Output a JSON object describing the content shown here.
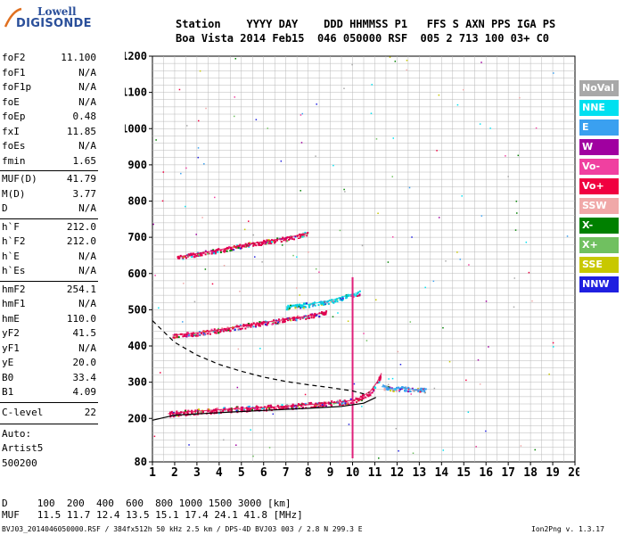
{
  "logo": {
    "line1": "Lowell",
    "line2": "DIGISONDE"
  },
  "header": {
    "line1": "Station    YYYY DAY    DDD HHMMSS P1   FFS S AXN PPS IGA PS",
    "line2": "Boa Vista 2014 Feb15  046 050000 RSF  005 2 713 100 03+ C0"
  },
  "params": [
    {
      "label": "foF2",
      "value": "11.100"
    },
    {
      "label": "foF1",
      "value": "N/A"
    },
    {
      "label": "foF1p",
      "value": "N/A"
    },
    {
      "label": "foE",
      "value": "N/A"
    },
    {
      "label": "foEp",
      "value": "0.48"
    },
    {
      "label": "fxI",
      "value": "11.85"
    },
    {
      "label": "foEs",
      "value": "N/A"
    },
    {
      "label": "fmin",
      "value": "1.65"
    },
    {
      "label": "MUF(D)",
      "value": "41.79"
    },
    {
      "label": "M(D)",
      "value": "3.77"
    },
    {
      "label": "D",
      "value": "N/A"
    },
    {
      "label": "h`F",
      "value": "212.0"
    },
    {
      "label": "h`F2",
      "value": "212.0"
    },
    {
      "label": "h`E",
      "value": "N/A"
    },
    {
      "label": "h`Es",
      "value": "N/A"
    },
    {
      "label": "hmF2",
      "value": "254.1"
    },
    {
      "label": "hmF1",
      "value": "N/A"
    },
    {
      "label": "hmE",
      "value": "110.0"
    },
    {
      "label": "yF2",
      "value": "41.5"
    },
    {
      "label": "yF1",
      "value": "N/A"
    },
    {
      "label": "yE",
      "value": "20.0"
    },
    {
      "label": "B0",
      "value": "33.4"
    },
    {
      "label": "B1",
      "value": "4.09"
    }
  ],
  "clevel": {
    "label": "C-level",
    "value": "22"
  },
  "auto": {
    "line1": "Auto:",
    "line2": "Artist5",
    "line3": "500200"
  },
  "legend": [
    {
      "label": "NoVal",
      "color": "#a8a8a8"
    },
    {
      "label": "NNE",
      "color": "#00e0f0"
    },
    {
      "label": "E",
      "color": "#3aa0f0"
    },
    {
      "label": "W",
      "color": "#a000a0"
    },
    {
      "label": "Vo-",
      "color": "#f040a0"
    },
    {
      "label": "Vo+",
      "color": "#f00040"
    },
    {
      "label": "SSW",
      "color": "#f0a8a8"
    },
    {
      "label": "X-",
      "color": "#008000"
    },
    {
      "label": "X+",
      "color": "#70c060"
    },
    {
      "label": "SSE",
      "color": "#c8c800"
    },
    {
      "label": "NNW",
      "color": "#2020e0"
    }
  ],
  "bottom": {
    "d_line": "D     100  200  400  600  800 1000 1500 3000 [km]",
    "muf_line": "MUF   11.5 11.7 12.4 13.5 15.1 17.4 24.1 41.8 [MHz]",
    "footer_left": "BVJ03_2014046050000.RSF / 384fx512h 50 kHz 2.5 km / DPS-4D BVJ03 003 / 2.8 N 299.3 E",
    "footer_right": "Ion2Png v. 1.3.17"
  },
  "chart_data": {
    "type": "scatter",
    "xlim": [
      1,
      20
    ],
    "ylim": [
      80,
      1200
    ],
    "x_ticks": [
      1,
      2,
      3,
      4,
      5,
      6,
      7,
      8,
      9,
      10,
      11,
      12,
      13,
      14,
      15,
      16,
      17,
      18,
      19,
      20
    ],
    "y_ticks": [
      80,
      200,
      300,
      400,
      500,
      600,
      700,
      800,
      900,
      1000,
      1100,
      1200
    ],
    "y_scale": "linear",
    "grid": true,
    "series": [
      {
        "name": "F2 trace (O)",
        "color": "#e00050",
        "points": [
          [
            1.7,
            213
          ],
          [
            2.5,
            218
          ],
          [
            3.5,
            222
          ],
          [
            4.5,
            226
          ],
          [
            5.5,
            229
          ],
          [
            6.5,
            232
          ],
          [
            7.5,
            236
          ],
          [
            8.5,
            240
          ],
          [
            9.5,
            246
          ],
          [
            10.2,
            252
          ],
          [
            10.8,
            275
          ],
          [
            11.1,
            300
          ],
          [
            11.3,
            325
          ]
        ]
      },
      {
        "name": "2F2 echo",
        "color": "#e00050",
        "points": [
          [
            1.9,
            430
          ],
          [
            3,
            436
          ],
          [
            4,
            445
          ],
          [
            5,
            455
          ],
          [
            6,
            465
          ],
          [
            7,
            473
          ],
          [
            8,
            483
          ],
          [
            8.8,
            493
          ]
        ]
      },
      {
        "name": "3F2 echo",
        "color": "#e00050",
        "points": [
          [
            2.1,
            645
          ],
          [
            3,
            655
          ],
          [
            4,
            665
          ],
          [
            5,
            678
          ],
          [
            6,
            688
          ],
          [
            7,
            698
          ],
          [
            8,
            712
          ]
        ]
      },
      {
        "name": "Upper 2nd hop",
        "color": "#00d0e0",
        "points": [
          [
            7,
            508
          ],
          [
            8,
            515
          ],
          [
            9,
            525
          ],
          [
            9.8,
            540
          ],
          [
            10.3,
            548
          ]
        ]
      },
      {
        "name": "Spread E",
        "color": "#3aa0f0",
        "points": [
          [
            11.3,
            288
          ],
          [
            11.8,
            282
          ],
          [
            12.3,
            284
          ],
          [
            12.8,
            280
          ],
          [
            13.3,
            279
          ]
        ]
      }
    ],
    "profile_curves": [
      {
        "name": "profile",
        "style": "solid",
        "points": [
          [
            1,
            195
          ],
          [
            2,
            209
          ],
          [
            4,
            216
          ],
          [
            6,
            222
          ],
          [
            8,
            228
          ],
          [
            9.5,
            233
          ],
          [
            10.5,
            242
          ],
          [
            11.05,
            258
          ]
        ]
      },
      {
        "name": "profile-dashed",
        "style": "dashed",
        "points": [
          [
            1,
            470
          ],
          [
            2,
            410
          ],
          [
            3,
            375
          ],
          [
            4,
            349
          ],
          [
            5,
            330
          ],
          [
            6,
            314
          ],
          [
            7,
            302
          ],
          [
            8,
            293
          ],
          [
            9,
            285
          ],
          [
            10,
            276
          ],
          [
            10.6,
            266
          ]
        ]
      }
    ]
  }
}
